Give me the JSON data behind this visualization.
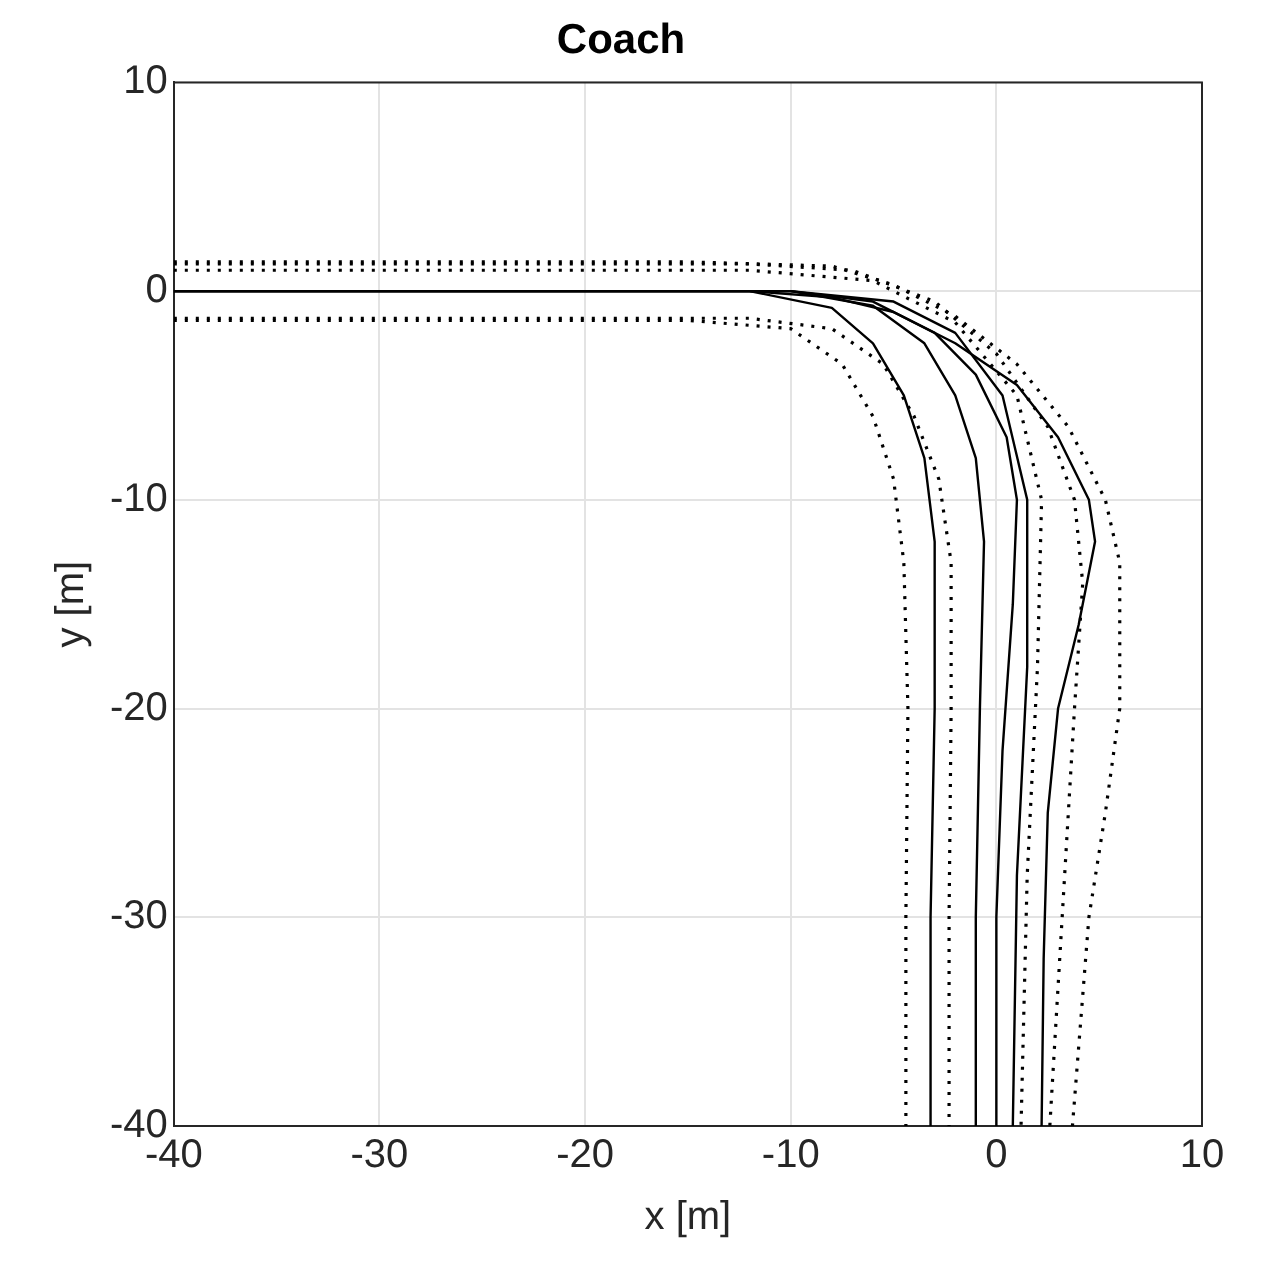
{
  "chart_data": {
    "type": "line",
    "title": "Coach",
    "xlabel": "x [m]",
    "ylabel": "y [m]",
    "xlim": [
      -40,
      10
    ],
    "xticks": [
      -40,
      -30,
      -20,
      -10,
      0,
      10
    ],
    "ylim": [
      -40,
      10
    ],
    "yticks": [
      -40,
      -30,
      -20,
      -10,
      0,
      10
    ],
    "grid": true,
    "legend": false,
    "marker": "none",
    "series": [
      {
        "color": "#000000",
        "line_style": "solid",
        "x": [
          -40,
          -12,
          -8,
          -5,
          -2,
          1,
          3,
          4.5,
          4.8,
          4,
          3,
          2.5,
          2.3,
          2.2
        ],
        "values": [
          0,
          0,
          -0.3,
          -1,
          -2.5,
          -4.5,
          -7,
          -10,
          -12,
          -16,
          -20,
          -25,
          -32,
          -40
        ]
      },
      {
        "color": "#000000",
        "line_style": "solid",
        "x": [
          -40,
          -12,
          -8,
          -6,
          -4.5,
          -3.5,
          -3,
          -3,
          -3.2,
          -3.2
        ],
        "values": [
          0,
          0,
          -0.8,
          -2.5,
          -5,
          -8,
          -12,
          -20,
          -30,
          -40
        ]
      },
      {
        "color": "#000000",
        "line_style": "solid",
        "x": [
          -40,
          -10,
          -6,
          -3,
          -1,
          0.5,
          1,
          0.8,
          0.3,
          0,
          0
        ],
        "values": [
          0,
          0,
          -0.5,
          -2,
          -4,
          -7,
          -10,
          -15,
          -22,
          -30,
          -40
        ]
      },
      {
        "color": "#000000",
        "line_style": "solid",
        "x": [
          -40,
          -10,
          -6,
          -3.5,
          -2,
          -1,
          -0.6,
          -0.8,
          -1,
          -1
        ],
        "values": [
          0,
          0,
          -0.7,
          -2.5,
          -5,
          -8,
          -12,
          -20,
          -30,
          -40
        ]
      },
      {
        "color": "#000000",
        "line_style": "solid",
        "x": [
          -40,
          -10,
          -5,
          -2,
          0.3,
          1.5,
          1.5,
          1,
          0.8
        ],
        "values": [
          0,
          0,
          -0.5,
          -2,
          -5,
          -10,
          -18,
          -28,
          -40
        ]
      },
      {
        "color": "#000000",
        "line_style": "dotted",
        "x": [
          -40,
          -15,
          -8,
          -5,
          -2,
          1,
          3.5,
          5.3,
          6,
          6,
          5.3,
          4.5,
          3.7
        ],
        "values": [
          1.4,
          1.4,
          1.2,
          0.3,
          -1.2,
          -3.5,
          -6.5,
          -10,
          -13,
          -20,
          -25,
          -30,
          -40
        ]
      },
      {
        "color": "#000000",
        "line_style": "dotted",
        "x": [
          -40,
          -15,
          -10,
          -7.5,
          -6,
          -5,
          -4.5,
          -4.3,
          -4.4,
          -4.4
        ],
        "values": [
          -1.4,
          -1.4,
          -1.8,
          -3.5,
          -6,
          -9,
          -13,
          -20,
          -30,
          -40
        ]
      },
      {
        "color": "#000000",
        "line_style": "dotted",
        "x": [
          -40,
          -12,
          -7,
          -3,
          0,
          2.5,
          3.8,
          4.2,
          3.8,
          3.2,
          2.6
        ],
        "values": [
          1.3,
          1.3,
          1,
          -0.5,
          -3,
          -6.5,
          -10,
          -14,
          -20,
          -30,
          -40
        ]
      },
      {
        "color": "#000000",
        "line_style": "dotted",
        "x": [
          -40,
          -12,
          -8,
          -5.5,
          -4,
          -2.8,
          -2.2,
          -2.2,
          -2.3,
          -2.3
        ],
        "values": [
          -1.3,
          -1.3,
          -1.8,
          -3.5,
          -6,
          -9,
          -13,
          -20,
          -30,
          -40
        ]
      },
      {
        "color": "#000000",
        "line_style": "dotted",
        "x": [
          -40,
          -12,
          -6,
          -2,
          1,
          2.2,
          2,
          1.5,
          1.2
        ],
        "values": [
          1,
          1,
          0.5,
          -1.5,
          -5,
          -10,
          -18,
          -28,
          -40
        ]
      }
    ]
  }
}
